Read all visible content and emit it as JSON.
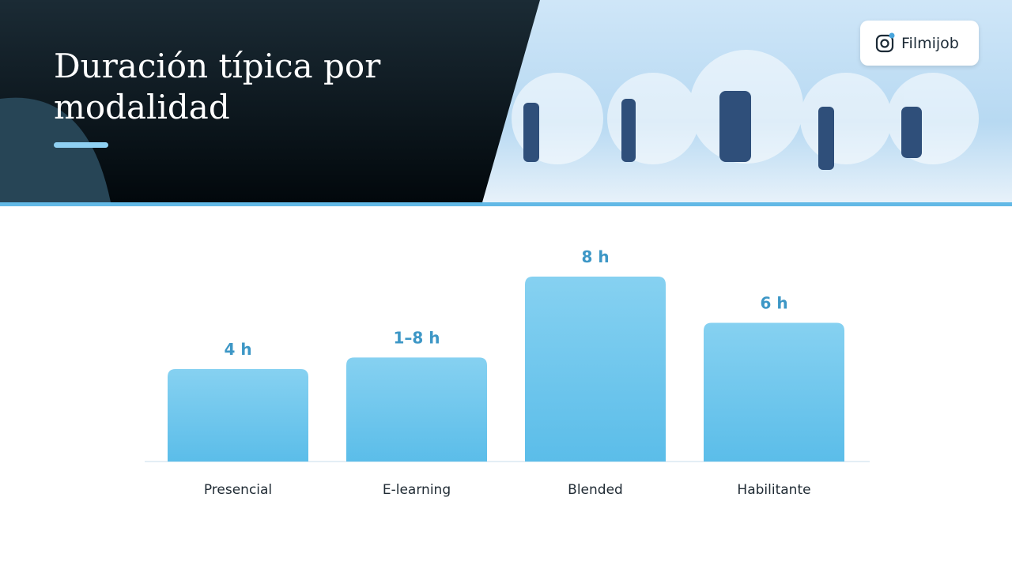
{
  "header": {
    "title": "Duración típica por modalidad",
    "brand": "Filmijob"
  },
  "chart_data": {
    "type": "bar",
    "categories": [
      "Presencial",
      "E-learning",
      "Blended",
      "Habilitante"
    ],
    "values": [
      4,
      4.5,
      8,
      6
    ],
    "value_labels": [
      "4 h",
      "1–8 h",
      "8 h",
      "6 h"
    ],
    "color": "#6cc6ee"
  }
}
